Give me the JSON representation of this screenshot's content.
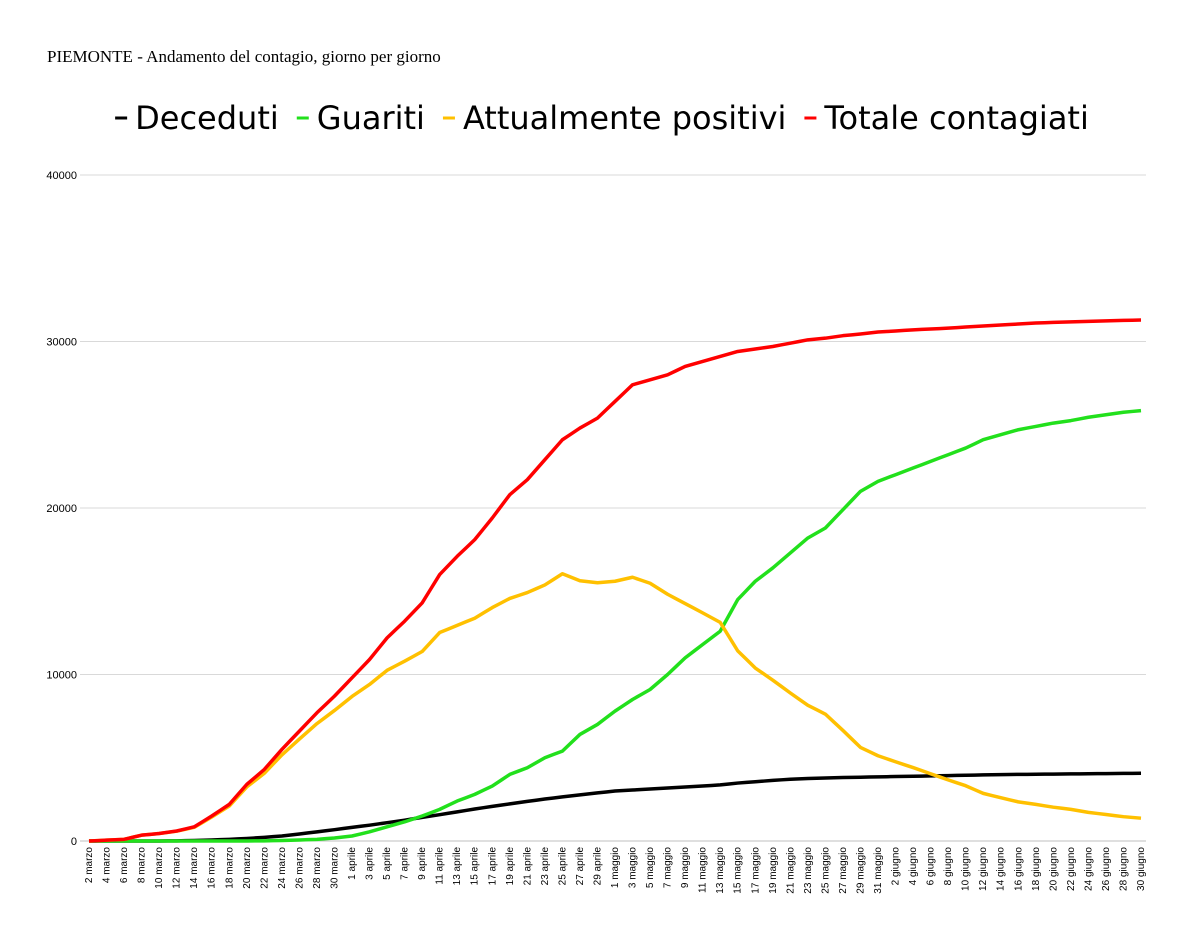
{
  "chart_data": {
    "type": "line",
    "title": "PIEMONTE - Andamento del contagio, giorno per giorno",
    "categories": [
      "2 marzo",
      null,
      "4 marzo",
      null,
      "6 marzo",
      null,
      "8 marzo",
      null,
      "10 marzo",
      null,
      "12 marzo",
      null,
      "14 marzo",
      null,
      "16 marzo",
      null,
      "18 marzo",
      null,
      "20 marzo",
      null,
      "22 marzo",
      null,
      "24 marzo",
      null,
      "26 marzo",
      null,
      "28 marzo",
      null,
      "30 marzo",
      null,
      "1 aprile",
      null,
      "3 aprile",
      null,
      "5 aprile",
      null,
      "7 aprile",
      null,
      "9 aprile",
      null,
      "11 aprile",
      null,
      "13 aprile",
      null,
      "15 aprile",
      null,
      "17 aprile",
      null,
      "19 aprile",
      null,
      "21 aprile",
      null,
      "23 aprile",
      null,
      "25 aprile",
      null,
      "27 aprile",
      null,
      "29 aprile",
      null,
      "1 maggio",
      null,
      "3 maggio",
      null,
      "5 maggio",
      null,
      "7 maggio",
      null,
      "9 maggio",
      null,
      "11 maggio",
      null,
      "13 maggio",
      null,
      "15 maggio",
      null,
      "17 maggio",
      null,
      "19 maggio",
      null,
      "21 maggio",
      null,
      "23 maggio",
      null,
      "25 maggio",
      null,
      "27 maggio",
      null,
      "29 maggio",
      null,
      "31 maggio",
      null,
      "2 giugno",
      null,
      "4 giugno",
      null,
      "6 giugno",
      null,
      "8 giugno",
      null,
      "10 giugno",
      null,
      "12 giugno",
      null,
      "14 giugno",
      null,
      "16 giugno",
      null,
      "18 giugno",
      null,
      "20 giugno",
      null,
      "22 giugno",
      null,
      "24 giugno",
      null,
      "26 giugno",
      null,
      "28 giugno",
      null,
      "30 giugno"
    ],
    "series": [
      {
        "name": "Deceduti",
        "color": "#000000",
        "values": [
          0,
          0,
          0,
          0,
          0,
          0,
          0,
          0,
          0,
          5,
          10,
          20,
          30,
          45,
          60,
          80,
          100,
          125,
          150,
          185,
          220,
          260,
          300,
          360,
          420,
          485,
          550,
          615,
          680,
          750,
          820,
          885,
          950,
          1025,
          1100,
          1175,
          1250,
          1335,
          1420,
          1500,
          1580,
          1665,
          1750,
          1835,
          1920,
          2000,
          2080,
          2155,
          2230,
          2305,
          2380,
          2450,
          2520,
          2585,
          2650,
          2710,
          2770,
          2830,
          2890,
          2945,
          3000,
          3030,
          3060,
          3090,
          3120,
          3150,
          3180,
          3210,
          3240,
          3270,
          3300,
          3335,
          3370,
          3425,
          3480,
          3520,
          3560,
          3600,
          3640,
          3675,
          3710,
          3730,
          3750,
          3765,
          3780,
          3795,
          3810,
          3820,
          3830,
          3840,
          3850,
          3860,
          3870,
          3880,
          3890,
          3900,
          3910,
          3920,
          3930,
          3940,
          3950,
          3960,
          3970,
          3980,
          3990,
          3995,
          4000,
          4005,
          4010,
          4015,
          4020,
          4025,
          4030,
          4035,
          4040,
          4045,
          4050,
          4055,
          4060,
          4065,
          4070
        ]
      },
      {
        "name": "Guariti",
        "color": "#22e01c",
        "values": [
          0,
          0,
          0,
          0,
          0,
          0,
          0,
          0,
          0,
          0,
          0,
          0,
          0,
          0,
          0,
          0,
          0,
          0,
          0,
          5,
          10,
          20,
          30,
          45,
          60,
          80,
          100,
          140,
          180,
          240,
          300,
          425,
          550,
          700,
          850,
          1000,
          1150,
          1325,
          1500,
          1700,
          1900,
          2150,
          2400,
          2600,
          2800,
          3050,
          3300,
          3650,
          4000,
          4200,
          4400,
          4700,
          5000,
          5200,
          5400,
          5900,
          6400,
          6700,
          7000,
          7400,
          7800,
          8150,
          8500,
          8800,
          9100,
          9550,
          10000,
          10500,
          11000,
          11400,
          11800,
          12200,
          12600,
          13550,
          14500,
          15050,
          15600,
          16000,
          16400,
          16850,
          17300,
          17750,
          18200,
          18500,
          18800,
          19350,
          19900,
          20450,
          21000,
          21300,
          21600,
          21800,
          22000,
          22200,
          22400,
          22600,
          22800,
          23000,
          23200,
          23400,
          23600,
          23850,
          24100,
          24250,
          24400,
          24550,
          24700,
          24800,
          24900,
          25000,
          25100,
          25175,
          25250,
          25350,
          25450,
          25525,
          25600,
          25675,
          25750,
          25800,
          25850
        ]
      },
      {
        "name": "Attualmente positivi",
        "color": "#ffc000",
        "values": [
          0,
          25,
          50,
          75,
          100,
          225,
          350,
          400,
          450,
          520,
          590,
          705,
          820,
          1130,
          1440,
          1770,
          2100,
          2675,
          3250,
          3660,
          4070,
          4620,
          5170,
          5645,
          6120,
          6585,
          7050,
          7445,
          7840,
          8260,
          8680,
          9040,
          9400,
          9825,
          10250,
          10525,
          10800,
          11090,
          11380,
          11950,
          12520,
          12735,
          12950,
          13165,
          13380,
          13700,
          14020,
          14295,
          14570,
          14745,
          14920,
          15150,
          15380,
          15715,
          16050,
          15840,
          15630,
          15570,
          15510,
          15555,
          15600,
          15720,
          15840,
          15660,
          15480,
          15150,
          14820,
          14540,
          14260,
          13980,
          13700,
          13415,
          13130,
          12275,
          11420,
          10905,
          10390,
          10025,
          9660,
          9275,
          8890,
          8520,
          8150,
          7885,
          7620,
          7130,
          6640,
          6130,
          5620,
          5370,
          5120,
          4940,
          4760,
          4585,
          4410,
          4225,
          4040,
          3855,
          3670,
          3495,
          3320,
          3090,
          2860,
          2730,
          2600,
          2475,
          2350,
          2275,
          2200,
          2115,
          2030,
          1965,
          1900,
          1810,
          1720,
          1655,
          1590,
          1525,
          1460,
          1415,
          1370
        ]
      },
      {
        "name": "Totale contagiati",
        "color": "#ff0000",
        "values": [
          0,
          25,
          50,
          75,
          100,
          225,
          350,
          400,
          450,
          525,
          600,
          725,
          850,
          1175,
          1500,
          1850,
          2200,
          2800,
          3400,
          3850,
          4300,
          4900,
          5500,
          6050,
          6600,
          7150,
          7700,
          8200,
          8700,
          9250,
          9800,
          10350,
          10900,
          11550,
          12200,
          12700,
          13200,
          13750,
          14300,
          15150,
          16000,
          16550,
          17100,
          17600,
          18100,
          18750,
          19400,
          20100,
          20800,
          21250,
          21700,
          22300,
          22900,
          23500,
          24100,
          24450,
          24800,
          25100,
          25400,
          25900,
          26400,
          26900,
          27400,
          27550,
          27700,
          27850,
          28000,
          28250,
          28500,
          28650,
          28800,
          28950,
          29100,
          29250,
          29400,
          29475,
          29550,
          29625,
          29700,
          29800,
          29900,
          30000,
          30100,
          30150,
          30200,
          30275,
          30350,
          30400,
          30450,
          30510,
          30570,
          30600,
          30630,
          30665,
          30700,
          30725,
          30750,
          30775,
          30800,
          30835,
          30870,
          30900,
          30930,
          30960,
          30990,
          31020,
          31050,
          31080,
          31110,
          31130,
          31150,
          31165,
          31180,
          31195,
          31210,
          31225,
          31240,
          31255,
          31270,
          31280,
          31290
        ]
      }
    ],
    "ylim": [
      0,
      40000
    ],
    "yticks": [
      0,
      10000,
      20000,
      30000,
      40000
    ],
    "grid": true,
    "legend": "top"
  }
}
